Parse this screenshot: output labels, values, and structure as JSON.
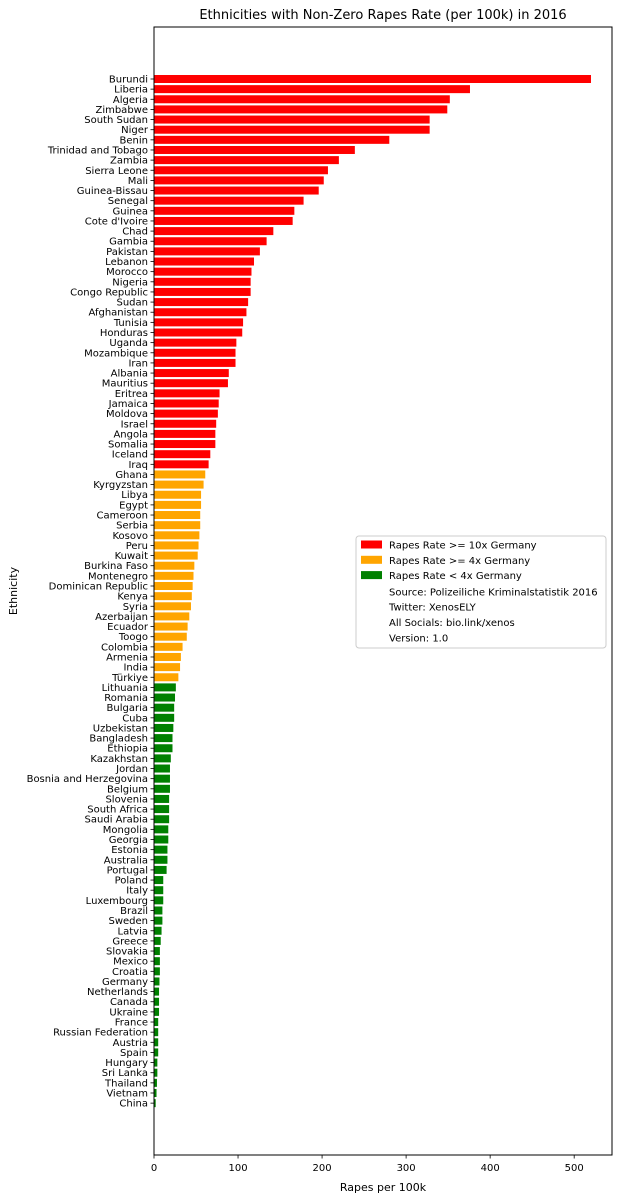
{
  "chart_data": {
    "type": "bar",
    "orientation": "horizontal",
    "title": "Ethnicities with Non-Zero Rapes Rate (per 100k) in 2016",
    "xlabel": "Rapes per 100k",
    "ylabel": "Ethnicity",
    "xlim": [
      0,
      545
    ],
    "xticks": [
      0,
      100,
      200,
      300,
      400,
      500
    ],
    "grid": false,
    "legend_position": "center-right",
    "colors": {
      "red": "#ff0000",
      "orange": "#ffa500",
      "green": "#008000"
    },
    "legend": [
      {
        "label": "Rapes Rate >= 10x Germany",
        "color": "#ff0000"
      },
      {
        "label": "Rapes Rate >= 4x Germany",
        "color": "#ffa500"
      },
      {
        "label": "Rapes Rate < 4x Germany",
        "color": "#008000"
      }
    ],
    "legend_notes": [
      "Source: Polizeiliche Kriminalstatistik 2016",
      "Twitter: XenosELY",
      "All Socials: bio.link/xenos",
      "Version: 1.0"
    ],
    "bars": [
      {
        "category": "Burundi",
        "value": 520,
        "group": "red"
      },
      {
        "category": "Liberia",
        "value": 376,
        "group": "red"
      },
      {
        "category": "Algeria",
        "value": 352,
        "group": "red"
      },
      {
        "category": "Zimbabwe",
        "value": 349,
        "group": "red"
      },
      {
        "category": "South Sudan",
        "value": 328,
        "group": "red"
      },
      {
        "category": "Niger",
        "value": 328,
        "group": "red"
      },
      {
        "category": "Benin",
        "value": 280,
        "group": "red"
      },
      {
        "category": "Trinidad and Tobago",
        "value": 239,
        "group": "red"
      },
      {
        "category": "Zambia",
        "value": 220,
        "group": "red"
      },
      {
        "category": "Sierra Leone",
        "value": 207,
        "group": "red"
      },
      {
        "category": "Mali",
        "value": 202,
        "group": "red"
      },
      {
        "category": "Guinea-Bissau",
        "value": 196,
        "group": "red"
      },
      {
        "category": "Senegal",
        "value": 178,
        "group": "red"
      },
      {
        "category": "Guinea",
        "value": 167,
        "group": "red"
      },
      {
        "category": "Cote d'Ivoire",
        "value": 165,
        "group": "red"
      },
      {
        "category": "Chad",
        "value": 142,
        "group": "red"
      },
      {
        "category": "Gambia",
        "value": 134,
        "group": "red"
      },
      {
        "category": "Pakistan",
        "value": 126,
        "group": "red"
      },
      {
        "category": "Lebanon",
        "value": 119,
        "group": "red"
      },
      {
        "category": "Morocco",
        "value": 116,
        "group": "red"
      },
      {
        "category": "Nigeria",
        "value": 115,
        "group": "red"
      },
      {
        "category": "Congo Republic",
        "value": 115,
        "group": "red"
      },
      {
        "category": "Sudan",
        "value": 112,
        "group": "red"
      },
      {
        "category": "Afghanistan",
        "value": 110,
        "group": "red"
      },
      {
        "category": "Tunisia",
        "value": 106,
        "group": "red"
      },
      {
        "category": "Honduras",
        "value": 105,
        "group": "red"
      },
      {
        "category": "Uganda",
        "value": 98,
        "group": "red"
      },
      {
        "category": "Mozambique",
        "value": 97,
        "group": "red"
      },
      {
        "category": "Iran",
        "value": 97,
        "group": "red"
      },
      {
        "category": "Albania",
        "value": 89,
        "group": "red"
      },
      {
        "category": "Mauritius",
        "value": 88,
        "group": "red"
      },
      {
        "category": "Eritrea",
        "value": 78,
        "group": "red"
      },
      {
        "category": "Jamaica",
        "value": 77,
        "group": "red"
      },
      {
        "category": "Moldova",
        "value": 76,
        "group": "red"
      },
      {
        "category": "Israel",
        "value": 74,
        "group": "red"
      },
      {
        "category": "Angola",
        "value": 73,
        "group": "red"
      },
      {
        "category": "Somalia",
        "value": 73,
        "group": "red"
      },
      {
        "category": "Iceland",
        "value": 67,
        "group": "red"
      },
      {
        "category": "Iraq",
        "value": 65,
        "group": "red"
      },
      {
        "category": "Ghana",
        "value": 61,
        "group": "orange"
      },
      {
        "category": "Kyrgyzstan",
        "value": 59,
        "group": "orange"
      },
      {
        "category": "Libya",
        "value": 56,
        "group": "orange"
      },
      {
        "category": "Egypt",
        "value": 56,
        "group": "orange"
      },
      {
        "category": "Cameroon",
        "value": 55,
        "group": "orange"
      },
      {
        "category": "Serbia",
        "value": 55,
        "group": "orange"
      },
      {
        "category": "Kosovo",
        "value": 54,
        "group": "orange"
      },
      {
        "category": "Peru",
        "value": 53,
        "group": "orange"
      },
      {
        "category": "Kuwait",
        "value": 52,
        "group": "orange"
      },
      {
        "category": "Burkina Faso",
        "value": 48,
        "group": "orange"
      },
      {
        "category": "Montenegro",
        "value": 47,
        "group": "orange"
      },
      {
        "category": "Dominican Republic",
        "value": 46,
        "group": "orange"
      },
      {
        "category": "Kenya",
        "value": 45,
        "group": "orange"
      },
      {
        "category": "Syria",
        "value": 44,
        "group": "orange"
      },
      {
        "category": "Azerbaijan",
        "value": 42,
        "group": "orange"
      },
      {
        "category": "Ecuador",
        "value": 40,
        "group": "orange"
      },
      {
        "category": "Toogo",
        "value": 39,
        "group": "orange"
      },
      {
        "category": "Colombia",
        "value": 34,
        "group": "orange"
      },
      {
        "category": "Armenia",
        "value": 32,
        "group": "orange"
      },
      {
        "category": "India",
        "value": 31,
        "group": "orange"
      },
      {
        "category": "Türkiye",
        "value": 29,
        "group": "orange"
      },
      {
        "category": "Lithuania",
        "value": 26,
        "group": "green"
      },
      {
        "category": "Romania",
        "value": 25,
        "group": "green"
      },
      {
        "category": "Bulgaria",
        "value": 24,
        "group": "green"
      },
      {
        "category": "Cuba",
        "value": 24,
        "group": "green"
      },
      {
        "category": "Uzbekistan",
        "value": 23,
        "group": "green"
      },
      {
        "category": "Bangladesh",
        "value": 22,
        "group": "green"
      },
      {
        "category": "Ethiopia",
        "value": 22,
        "group": "green"
      },
      {
        "category": "Kazakhstan",
        "value": 20,
        "group": "green"
      },
      {
        "category": "Jordan",
        "value": 19,
        "group": "green"
      },
      {
        "category": "Bosnia and Herzegovina",
        "value": 19,
        "group": "green"
      },
      {
        "category": "Belgium",
        "value": 19,
        "group": "green"
      },
      {
        "category": "Slovenia",
        "value": 18,
        "group": "green"
      },
      {
        "category": "South Africa",
        "value": 18,
        "group": "green"
      },
      {
        "category": "Saudi Arabia",
        "value": 18,
        "group": "green"
      },
      {
        "category": "Mongolia",
        "value": 17,
        "group": "green"
      },
      {
        "category": "Georgia",
        "value": 17,
        "group": "green"
      },
      {
        "category": "Estonia",
        "value": 16,
        "group": "green"
      },
      {
        "category": "Australia",
        "value": 16,
        "group": "green"
      },
      {
        "category": "Portugal",
        "value": 15,
        "group": "green"
      },
      {
        "category": "Poland",
        "value": 11,
        "group": "green"
      },
      {
        "category": "Italy",
        "value": 11,
        "group": "green"
      },
      {
        "category": "Luxembourg",
        "value": 11,
        "group": "green"
      },
      {
        "category": "Brazil",
        "value": 10,
        "group": "green"
      },
      {
        "category": "Sweden",
        "value": 10,
        "group": "green"
      },
      {
        "category": "Latvia",
        "value": 9,
        "group": "green"
      },
      {
        "category": "Greece",
        "value": 8,
        "group": "green"
      },
      {
        "category": "Slovakia",
        "value": 7,
        "group": "green"
      },
      {
        "category": "Mexico",
        "value": 7,
        "group": "green"
      },
      {
        "category": "Croatia",
        "value": 7,
        "group": "green"
      },
      {
        "category": "Germany",
        "value": 6.5,
        "group": "green"
      },
      {
        "category": "Netherlands",
        "value": 6,
        "group": "green"
      },
      {
        "category": "Canada",
        "value": 6,
        "group": "green"
      },
      {
        "category": "Ukraine",
        "value": 6,
        "group": "green"
      },
      {
        "category": "France",
        "value": 5,
        "group": "green"
      },
      {
        "category": "Russian Federation",
        "value": 5,
        "group": "green"
      },
      {
        "category": "Austria",
        "value": 5,
        "group": "green"
      },
      {
        "category": "Spain",
        "value": 5,
        "group": "green"
      },
      {
        "category": "Hungary",
        "value": 4,
        "group": "green"
      },
      {
        "category": "Sri Lanka",
        "value": 4,
        "group": "green"
      },
      {
        "category": "Thailand",
        "value": 3.5,
        "group": "green"
      },
      {
        "category": "Vietnam",
        "value": 3,
        "group": "green"
      },
      {
        "category": "China",
        "value": 2,
        "group": "green"
      }
    ]
  }
}
